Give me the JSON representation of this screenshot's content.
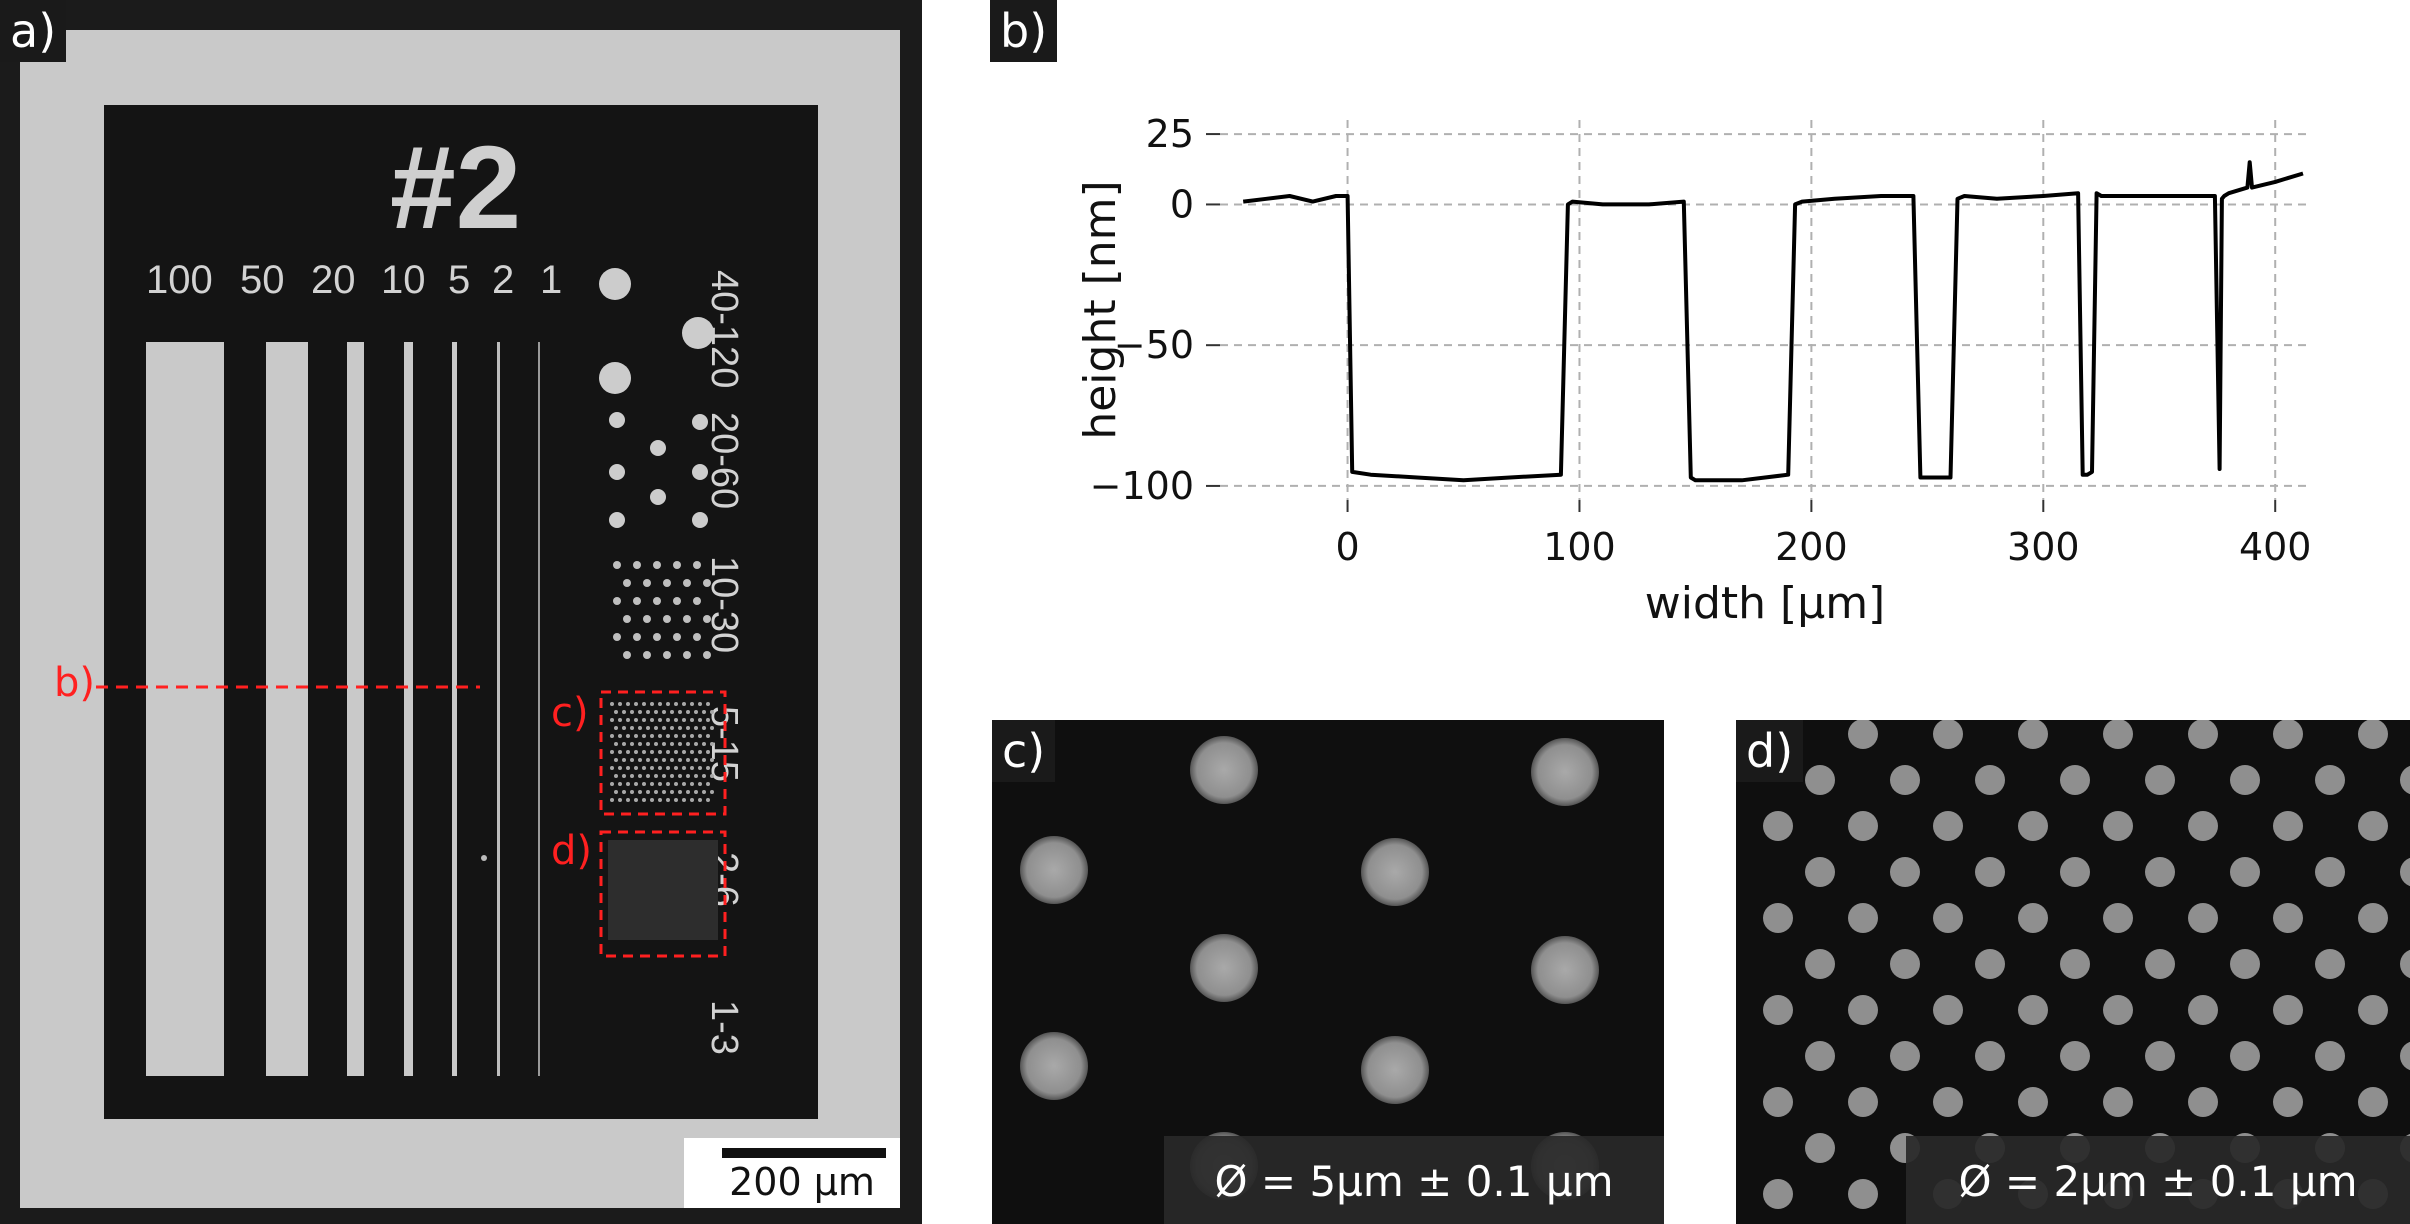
{
  "panel_a": {
    "tag": "a)",
    "sample_id": "#2",
    "line_widths": [
      "100",
      "50",
      "20",
      "10",
      "5",
      "2",
      "1"
    ],
    "dot_groups": [
      "40-120",
      "20-60",
      "10-30",
      "5-15",
      "2-6",
      "1-3"
    ],
    "markers": {
      "b": "b)",
      "c": "c)",
      "d": "d)"
    },
    "scalebar": "200 µm"
  },
  "panel_b": {
    "tag": "b)",
    "chart_data": {
      "type": "line",
      "xlabel": "width [µm]",
      "ylabel": "height [nm]",
      "xlim": [
        -55,
        415
      ],
      "ylim": [
        -105,
        30
      ],
      "xticks": [
        0,
        100,
        200,
        300,
        400
      ],
      "yticks": [
        25,
        0,
        -50,
        -100
      ],
      "ytick_labels": [
        "25",
        "0",
        "−50",
        "−100"
      ],
      "grid": true,
      "series": [
        {
          "x": [
            -45,
            -35,
            -25,
            -15,
            -5,
            0,
            2,
            10,
            30,
            50,
            70,
            92,
            95,
            97,
            110,
            130,
            145,
            148,
            150,
            170,
            190,
            193,
            196,
            210,
            230,
            244,
            247,
            250,
            260,
            263,
            266,
            280,
            300,
            315,
            317,
            319,
            321,
            323,
            325,
            340,
            360,
            374,
            376,
            377,
            378,
            380,
            388,
            389,
            390,
            400,
            412
          ],
          "y": [
            1,
            2,
            3,
            1,
            3,
            3,
            -95,
            -96,
            -97,
            -98,
            -97,
            -96,
            0,
            1,
            0,
            0,
            1,
            -97,
            -98,
            -98,
            -96,
            0,
            1,
            2,
            3,
            3,
            -97,
            -97,
            -97,
            2,
            3,
            2,
            3,
            4,
            -96,
            -96,
            -95,
            4,
            3,
            3,
            3,
            3,
            -94,
            2,
            3,
            4,
            6,
            15,
            6,
            8,
            11
          ]
        }
      ]
    }
  },
  "panel_c": {
    "tag": "c)",
    "caption": "Ø = 5µm ± 0.1 µm"
  },
  "panel_d": {
    "tag": "d)",
    "caption": "Ø = 2µm ± 0.1 µm"
  }
}
